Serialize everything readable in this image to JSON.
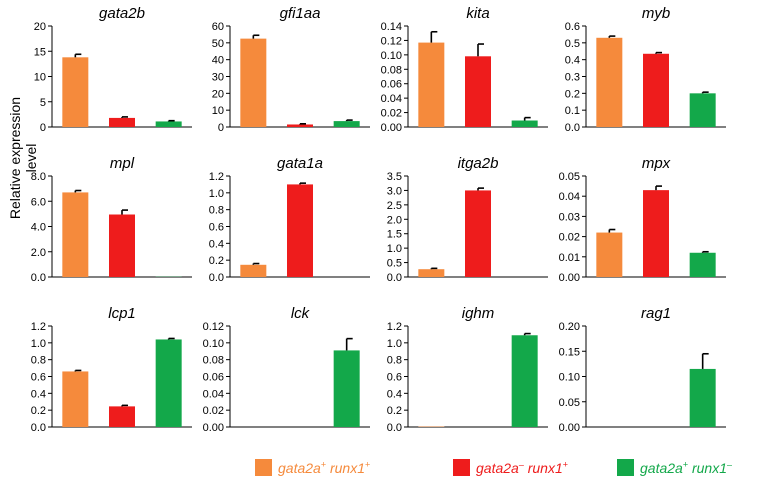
{
  "y_axis_label": "Relative expression level",
  "colors": {
    "orange": "#F58A3C",
    "red": "#EE1C1C",
    "green": "#13A84A"
  },
  "legend": [
    {
      "gene_a": "gata2a",
      "sup_a": "+",
      "gene_b": "runx1",
      "sup_b": "+",
      "color": "#F58A3C"
    },
    {
      "gene_a": "gata2a",
      "sup_a": "–",
      "gene_b": "runx1",
      "sup_b": "+",
      "color": "#EE1C1C"
    },
    {
      "gene_a": "gata2a",
      "sup_a": "+",
      "gene_b": "runx1",
      "sup_b": "–",
      "color": "#13A84A"
    }
  ],
  "chart_data": [
    {
      "type": "bar",
      "title": "gata2b",
      "ylim": [
        0,
        20
      ],
      "ticks": [
        "0",
        "5",
        "10",
        "15",
        "20"
      ],
      "values": [
        13.8,
        1.8,
        1.1
      ],
      "errors": [
        0.6,
        0.2,
        0.15
      ]
    },
    {
      "type": "bar",
      "title": "gfi1aa",
      "ylim": [
        0,
        60
      ],
      "ticks": [
        "0",
        "10",
        "20",
        "30",
        "40",
        "50",
        "60"
      ],
      "values": [
        52.5,
        1.5,
        3.5
      ],
      "errors": [
        2.0,
        0.4,
        0.6
      ]
    },
    {
      "type": "bar",
      "title": "kita",
      "ylim": [
        0,
        0.14
      ],
      "ticks": [
        "0.00",
        "0.02",
        "0.04",
        "0.06",
        "0.08",
        "0.10",
        "0.12",
        "0.14"
      ],
      "values": [
        0.117,
        0.098,
        0.009
      ],
      "errors": [
        0.015,
        0.017,
        0.004
      ]
    },
    {
      "type": "bar",
      "title": "myb",
      "ylim": [
        0,
        0.6
      ],
      "ticks": [
        "0.0",
        "0.1",
        "0.2",
        "0.3",
        "0.4",
        "0.5",
        "0.6"
      ],
      "values": [
        0.53,
        0.435,
        0.2
      ],
      "errors": [
        0.01,
        0.007,
        0.007
      ]
    },
    {
      "type": "bar",
      "title": "mpl",
      "ylim": [
        0,
        8.0
      ],
      "ticks": [
        "0.0",
        "2.0",
        "4.0",
        "6.0",
        "8.0"
      ],
      "values": [
        6.7,
        4.95,
        0.02
      ],
      "errors": [
        0.15,
        0.35,
        0.0
      ]
    },
    {
      "type": "bar",
      "title": "gata1a",
      "ylim": [
        0,
        1.2
      ],
      "ticks": [
        "0.0",
        "0.2",
        "0.4",
        "0.6",
        "0.8",
        "1.0",
        "1.2"
      ],
      "values": [
        0.145,
        1.1,
        0.0
      ],
      "errors": [
        0.015,
        0.015,
        0.0
      ]
    },
    {
      "type": "bar",
      "title": "itga2b",
      "ylim": [
        0,
        3.5
      ],
      "ticks": [
        "0.0",
        "0.5",
        "1.0",
        "1.5",
        "2.0",
        "2.5",
        "3.0",
        "3.5"
      ],
      "values": [
        0.27,
        3.0,
        0.0
      ],
      "errors": [
        0.03,
        0.08,
        0.0
      ]
    },
    {
      "type": "bar",
      "title": "mpx",
      "ylim": [
        0,
        0.05
      ],
      "ticks": [
        "0.00",
        "0.01",
        "0.02",
        "0.03",
        "0.04",
        "0.05"
      ],
      "values": [
        0.022,
        0.043,
        0.012
      ],
      "errors": [
        0.0015,
        0.002,
        0.0005
      ]
    },
    {
      "type": "bar",
      "title": "lcp1",
      "ylim": [
        0,
        1.2
      ],
      "ticks": [
        "0.0",
        "0.2",
        "0.4",
        "0.6",
        "0.8",
        "1.0",
        "1.2"
      ],
      "values": [
        0.66,
        0.245,
        1.04
      ],
      "errors": [
        0.012,
        0.012,
        0.012
      ]
    },
    {
      "type": "bar",
      "title": "lck",
      "ylim": [
        0,
        0.12
      ],
      "ticks": [
        "0.00",
        "0.02",
        "0.04",
        "0.06",
        "0.08",
        "0.10",
        "0.12"
      ],
      "values": [
        0.0,
        0.0,
        0.091
      ],
      "errors": [
        0.0,
        0.0,
        0.014
      ]
    },
    {
      "type": "bar",
      "title": "ighm",
      "ylim": [
        0,
        1.2
      ],
      "ticks": [
        "0.0",
        "0.2",
        "0.4",
        "0.6",
        "0.8",
        "1.0",
        "1.2"
      ],
      "values": [
        0.005,
        0.0,
        1.09
      ],
      "errors": [
        0.0,
        0.0,
        0.02
      ]
    },
    {
      "type": "bar",
      "title": "rag1",
      "ylim": [
        0,
        0.2
      ],
      "ticks": [
        "0.00",
        "0.05",
        "0.10",
        "0.15",
        "0.20"
      ],
      "values": [
        0.0,
        0.0,
        0.115
      ],
      "errors": [
        0.0,
        0.0,
        0.03
      ]
    }
  ]
}
